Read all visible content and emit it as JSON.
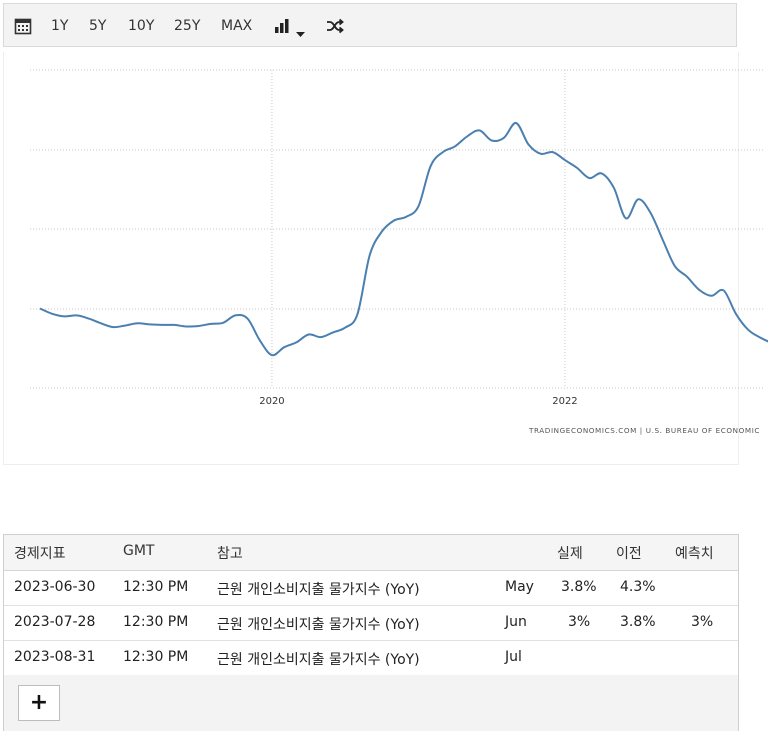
{
  "toolbar": {
    "calendar_icon": "calendar-icon",
    "ranges": [
      "1Y",
      "5Y",
      "10Y",
      "25Y",
      "MAX"
    ],
    "chart_type_icon": "bar-chart-icon",
    "dropdown_icon": "caret-down-icon",
    "shuffle_icon": "shuffle-icon"
  },
  "chart_data": {
    "type": "line",
    "title": "",
    "xlabel": "",
    "ylabel": "",
    "x_tick_labels": [
      "2020",
      "2022"
    ],
    "y_tick_labels": [],
    "grid": true,
    "line_color": "#4a7fb0",
    "ylim": [
      0.5,
      6.5
    ],
    "series": [
      {
        "x": [
          "2018-06",
          "2018-07",
          "2018-08",
          "2018-09",
          "2018-10",
          "2018-11",
          "2018-12",
          "2019-01",
          "2019-02",
          "2019-03",
          "2019-04",
          "2019-05",
          "2019-06",
          "2019-07",
          "2019-08",
          "2019-09",
          "2019-10",
          "2019-11",
          "2019-12",
          "2020-01",
          "2020-02",
          "2020-03",
          "2020-04",
          "2020-05",
          "2020-06",
          "2020-07",
          "2020-08",
          "2020-09",
          "2020-10",
          "2020-11",
          "2020-12",
          "2021-01",
          "2021-02",
          "2021-03",
          "2021-04",
          "2021-05",
          "2021-06",
          "2021-07",
          "2021-08",
          "2021-09",
          "2021-10",
          "2021-11",
          "2021-12",
          "2022-01",
          "2022-02",
          "2022-03",
          "2022-04",
          "2022-05",
          "2022-06",
          "2022-07",
          "2022-08",
          "2022-09",
          "2022-10",
          "2022-11",
          "2022-12",
          "2023-01",
          "2023-02",
          "2023-03",
          "2023-04",
          "2023-05",
          "2023-06"
        ],
        "values": [
          2.0,
          1.9,
          1.85,
          1.87,
          1.81,
          1.72,
          1.65,
          1.68,
          1.72,
          1.7,
          1.69,
          1.69,
          1.66,
          1.67,
          1.71,
          1.73,
          1.87,
          1.81,
          1.4,
          1.12,
          1.27,
          1.36,
          1.51,
          1.46,
          1.55,
          1.64,
          1.89,
          3.0,
          3.45,
          3.66,
          3.73,
          3.93,
          4.69,
          4.95,
          5.06,
          5.25,
          5.36,
          5.17,
          5.22,
          5.5,
          5.1,
          4.92,
          4.95,
          4.8,
          4.65,
          4.46,
          4.55,
          4.28,
          3.7,
          4.06,
          3.81,
          3.3,
          2.8,
          2.6,
          2.35,
          2.24,
          2.34,
          1.9,
          1.6,
          1.45,
          1.34
        ]
      }
    ]
  },
  "source_text": "TRADINGECONOMICS.COM  |  U.S. BUREAU OF ECONOMIC",
  "table": {
    "headers": {
      "indicator": "경제지표",
      "gmt": "GMT",
      "reference": "참고",
      "actual": "실제",
      "previous": "이전",
      "forecast": "예측치"
    },
    "rows": [
      {
        "date": "2023-06-30",
        "time": "12:30 PM",
        "name": "근원 개인소비지출 물가지수 (YoY)",
        "period": "May",
        "actual": "3.8%",
        "previous": "4.3%",
        "forecast": ""
      },
      {
        "date": "2023-07-28",
        "time": "12:30 PM",
        "name": "근원 개인소비지출 물가지수 (YoY)",
        "period": "Jun",
        "actual": "3%",
        "previous": "3.8%",
        "forecast": "3%"
      },
      {
        "date": "2023-08-31",
        "time": "12:30 PM",
        "name": "근원 개인소비지출 물가지수 (YoY)",
        "period": "Jul",
        "actual": "",
        "previous": "",
        "forecast": ""
      }
    ],
    "add_label": "+"
  }
}
